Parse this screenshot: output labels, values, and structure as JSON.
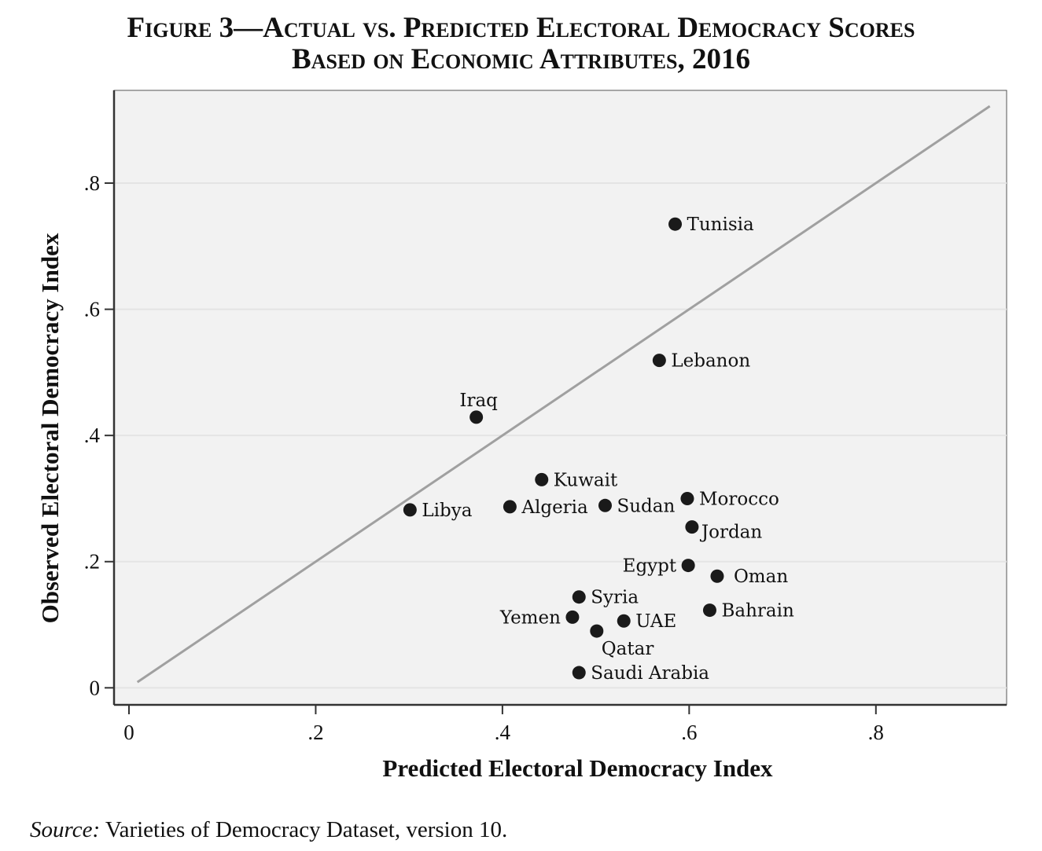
{
  "title_line1": "Figure 3—Actual vs. Predicted Electoral Democracy Scores",
  "title_line2": "Based on Economic Attributes, 2016",
  "source_label": "Source:",
  "source_text": " Varieties of Democracy Dataset, version 10.",
  "chart_data": {
    "type": "scatter",
    "title": "Figure 3—Actual vs. Predicted Electoral Democracy Scores Based on Economic Attributes, 2016",
    "xlabel": "Predicted Electoral Democracy Index",
    "ylabel": "Observed Electoral Democracy Index",
    "xlim": [
      -0.016,
      0.94
    ],
    "ylim": [
      -0.027,
      0.947
    ],
    "xticks": [
      0,
      0.2,
      0.4,
      0.6,
      0.8
    ],
    "xtick_labels": [
      "0",
      ".2",
      ".4",
      ".6",
      ".8"
    ],
    "yticks": [
      0,
      0.2,
      0.4,
      0.6,
      0.8
    ],
    "ytick_labels": [
      "0",
      ".2",
      ".4",
      ".6",
      ".8"
    ],
    "grid": "horizontal",
    "reference_line": {
      "type": "y=x",
      "x": [
        0.009,
        0.922
      ]
    },
    "colors": {
      "plot_bg": "#f2f2f2",
      "grid": "#e4e4e4",
      "line": "#a0a0a0",
      "point": "#1a1a1a"
    },
    "points": [
      {
        "label": "Tunisia",
        "x": 0.585,
        "y": 0.735
      },
      {
        "label": "Lebanon",
        "x": 0.568,
        "y": 0.519
      },
      {
        "label": "Iraq",
        "x": 0.372,
        "y": 0.429
      },
      {
        "label": "Kuwait",
        "x": 0.442,
        "y": 0.33
      },
      {
        "label": "Libya",
        "x": 0.301,
        "y": 0.282
      },
      {
        "label": "Algeria",
        "x": 0.408,
        "y": 0.287
      },
      {
        "label": "Sudan",
        "x": 0.51,
        "y": 0.289
      },
      {
        "label": "Morocco",
        "x": 0.598,
        "y": 0.3
      },
      {
        "label": "Jordan",
        "x": 0.603,
        "y": 0.255
      },
      {
        "label": "Egypt",
        "x": 0.599,
        "y": 0.194
      },
      {
        "label": "Oman",
        "x": 0.63,
        "y": 0.177
      },
      {
        "label": "Syria",
        "x": 0.482,
        "y": 0.144
      },
      {
        "label": "Yemen",
        "x": 0.475,
        "y": 0.112
      },
      {
        "label": "UAE",
        "x": 0.53,
        "y": 0.106
      },
      {
        "label": "Qatar",
        "x": 0.501,
        "y": 0.09
      },
      {
        "label": "Bahrain",
        "x": 0.622,
        "y": 0.123
      },
      {
        "label": "Saudi Arabia",
        "x": 0.482,
        "y": 0.024
      }
    ]
  }
}
